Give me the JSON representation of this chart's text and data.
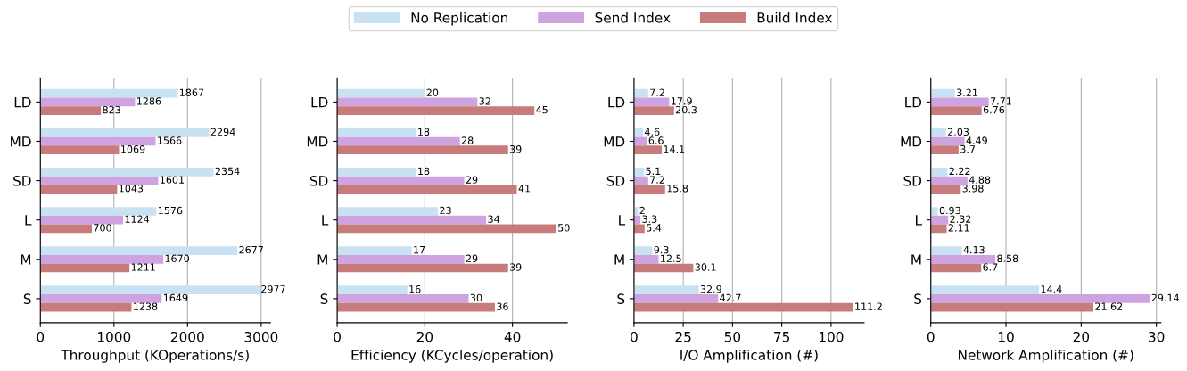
{
  "chart_data": [
    {
      "type": "bar",
      "orientation": "horizontal",
      "xlabel": "Throughput (KOperations/s)",
      "categories": [
        "LD",
        "MD",
        "SD",
        "L",
        "M",
        "S"
      ],
      "xlim": [
        0,
        3126
      ],
      "xticks": [
        0,
        1000,
        2000,
        3000
      ],
      "grid": "x",
      "legend": "top",
      "data_labels": true,
      "series": [
        {
          "name": "No Replication",
          "color": "#c9e2f3",
          "values": [
            1867,
            2294,
            2354,
            1576,
            2677,
            2977
          ]
        },
        {
          "name": "Send Index",
          "color": "#cfa3e0",
          "values": [
            1286,
            1566,
            1601,
            1124,
            1670,
            1649
          ]
        },
        {
          "name": "Build Index",
          "color": "#c77b7b",
          "values": [
            823,
            1069,
            1043,
            700,
            1211,
            1238
          ]
        }
      ]
    },
    {
      "type": "bar",
      "orientation": "horizontal",
      "xlabel": "Efficiency (KCycles/operation)",
      "categories": [
        "LD",
        "MD",
        "SD",
        "L",
        "M",
        "S"
      ],
      "xlim": [
        0,
        52.5
      ],
      "xticks": [
        0,
        20,
        40
      ],
      "grid": "x",
      "data_labels": true,
      "series": [
        {
          "color": "#c9e2f3",
          "values": [
            20,
            18,
            18,
            23,
            17,
            16
          ]
        },
        {
          "color": "#cfa3e0",
          "values": [
            32,
            28,
            29,
            34,
            29,
            30
          ]
        },
        {
          "color": "#c77b7b",
          "values": [
            45,
            39,
            41,
            50,
            39,
            36
          ]
        }
      ]
    },
    {
      "type": "bar",
      "orientation": "horizontal",
      "xlabel": "I/O Amplification (#)",
      "categories": [
        "LD",
        "MD",
        "SD",
        "L",
        "M",
        "S"
      ],
      "xlim": [
        0,
        116.76
      ],
      "xticks": [
        0,
        25,
        50,
        75,
        100
      ],
      "grid": "x",
      "data_labels": true,
      "series": [
        {
          "color": "#c9e2f3",
          "values": [
            7.2,
            4.6,
            5.1,
            2,
            9.3,
            32.9
          ]
        },
        {
          "color": "#cfa3e0",
          "values": [
            17.9,
            6.6,
            7.2,
            3.3,
            12.5,
            42.7
          ]
        },
        {
          "color": "#c77b7b",
          "values": [
            20.3,
            14.1,
            15.8,
            5.4,
            30.1,
            111.2
          ]
        }
      ]
    },
    {
      "type": "bar",
      "orientation": "horizontal",
      "xlabel": "Network Amplification (#)",
      "categories": [
        "LD",
        "MD",
        "SD",
        "L",
        "M",
        "S"
      ],
      "xlim": [
        0,
        30.6
      ],
      "xticks": [
        0,
        10,
        20,
        30
      ],
      "grid": "x",
      "data_labels": true,
      "series": [
        {
          "color": "#c9e2f3",
          "values": [
            3.21,
            2.03,
            2.22,
            0.93,
            4.13,
            14.4
          ]
        },
        {
          "color": "#cfa3e0",
          "values": [
            7.71,
            4.49,
            4.88,
            2.32,
            8.58,
            29.14
          ]
        },
        {
          "color": "#c77b7b",
          "values": [
            6.76,
            3.7,
            3.98,
            2.11,
            6.7,
            21.62
          ]
        }
      ]
    }
  ]
}
